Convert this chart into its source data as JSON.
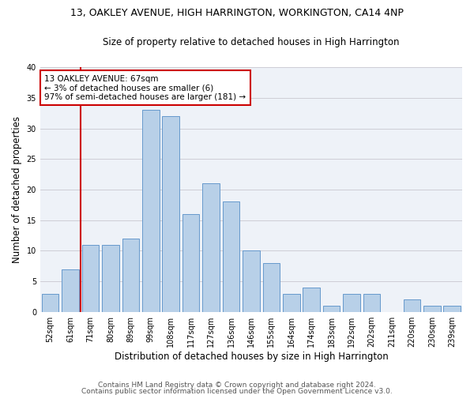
{
  "title": "13, OAKLEY AVENUE, HIGH HARRINGTON, WORKINGTON, CA14 4NP",
  "subtitle": "Size of property relative to detached houses in High Harrington",
  "xlabel": "Distribution of detached houses by size in High Harrington",
  "ylabel": "Number of detached properties",
  "bins": [
    "52sqm",
    "61sqm",
    "71sqm",
    "80sqm",
    "89sqm",
    "99sqm",
    "108sqm",
    "117sqm",
    "127sqm",
    "136sqm",
    "146sqm",
    "155sqm",
    "164sqm",
    "174sqm",
    "183sqm",
    "192sqm",
    "202sqm",
    "211sqm",
    "220sqm",
    "230sqm",
    "239sqm"
  ],
  "values": [
    3,
    7,
    11,
    11,
    12,
    33,
    32,
    16,
    21,
    18,
    10,
    8,
    3,
    4,
    1,
    3,
    3,
    0,
    2,
    1,
    1
  ],
  "bar_color": "#b8d0e8",
  "bar_edge_color": "#6699cc",
  "vline_color": "#cc0000",
  "annotation_text": "13 OAKLEY AVENUE: 67sqm\n← 3% of detached houses are smaller (6)\n97% of semi-detached houses are larger (181) →",
  "annotation_box_color": "#ffffff",
  "annotation_box_edge": "#cc0000",
  "ylim": [
    0,
    40
  ],
  "yticks": [
    0,
    5,
    10,
    15,
    20,
    25,
    30,
    35,
    40
  ],
  "footer1": "Contains HM Land Registry data © Crown copyright and database right 2024.",
  "footer2": "Contains public sector information licensed under the Open Government Licence v3.0.",
  "background_color": "#eef2f8",
  "title_fontsize": 9,
  "subtitle_fontsize": 8.5,
  "xlabel_fontsize": 8.5,
  "ylabel_fontsize": 8.5,
  "tick_fontsize": 7,
  "annotation_fontsize": 7.5,
  "footer_fontsize": 6.5
}
